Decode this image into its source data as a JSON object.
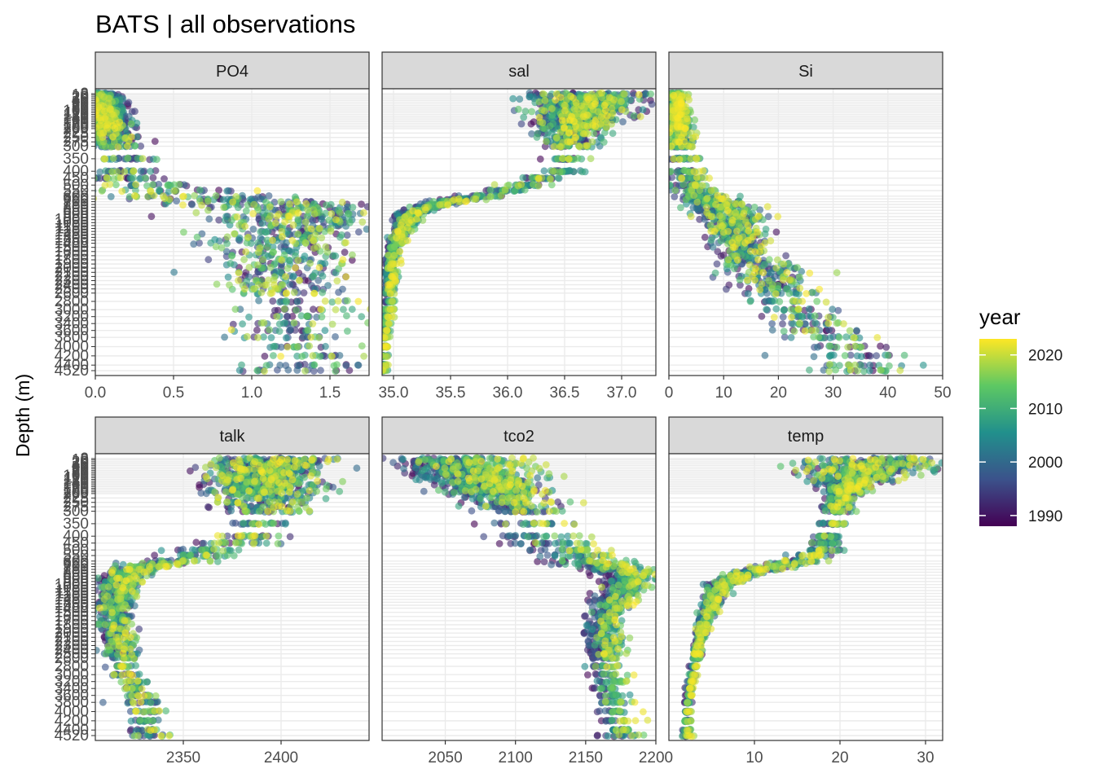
{
  "title": "BATS | all observations",
  "legend": {
    "title": "year",
    "ticks": [
      1990,
      2000,
      2010,
      2020
    ],
    "range": [
      1988,
      2023
    ],
    "colors": [
      "#440154",
      "#3b528b",
      "#21908c",
      "#5dc863",
      "#fde725"
    ]
  },
  "chart_data": {
    "type": "scatter",
    "ylabel": "Depth (m)",
    "y_scale": "reversed, discrete depth bins",
    "depth_levels": [
      2,
      10,
      20,
      30,
      40,
      50,
      60,
      70,
      80,
      90,
      100,
      110,
      120,
      130,
      140,
      150,
      160,
      170,
      180,
      190,
      200,
      225,
      250,
      275,
      300,
      350,
      400,
      450,
      500,
      550,
      600,
      650,
      700,
      750,
      800,
      850,
      900,
      950,
      1000,
      1050,
      1100,
      1150,
      1200,
      1250,
      1300,
      1350,
      1400,
      1500,
      1600,
      1700,
      1800,
      1900,
      2000,
      2100,
      2200,
      2300,
      2400,
      2500,
      2600,
      2800,
      3000,
      3200,
      3400,
      3600,
      3800,
      4000,
      4200,
      4400,
      4520
    ],
    "y_tick_labels": [
      "2",
      "10",
      "20",
      "30",
      "40",
      "50",
      "60",
      "70",
      "80",
      "90",
      "100",
      "110",
      "120",
      "130",
      "140",
      "150",
      "160",
      "170",
      "180",
      "190",
      "200",
      "225",
      "250",
      "275",
      "300",
      "350",
      "400",
      "450",
      "500",
      "550",
      "600",
      "650",
      "700",
      "750",
      "800",
      "850",
      "900",
      "950",
      "1000",
      "1050",
      "1100",
      "1150",
      "1200",
      "1250",
      "1300",
      "1350",
      "1400",
      "1500",
      "1600",
      "1700",
      "1800",
      "1900",
      "2000",
      "2100",
      "2200",
      "2300",
      "2400",
      "2500",
      "2600",
      "2800",
      "3000",
      "3200",
      "3400",
      "3600",
      "3800",
      "4000",
      "4200",
      "4400",
      "4520"
    ],
    "panels": [
      {
        "name": "PO4",
        "xlim": [
          0,
          1.75
        ],
        "xticks": [
          0,
          0.5,
          1,
          1.5
        ],
        "xtick_labels": [
          "0.0",
          "0.5",
          "1.0",
          "1.5"
        ],
        "profile": [
          [
            2,
            0.02
          ],
          [
            50,
            0.03
          ],
          [
            100,
            0.05
          ],
          [
            200,
            0.08
          ],
          [
            300,
            0.12
          ],
          [
            400,
            0.15
          ],
          [
            500,
            0.3
          ],
          [
            600,
            0.6
          ],
          [
            700,
            0.95
          ],
          [
            800,
            1.2
          ],
          [
            900,
            1.3
          ],
          [
            1000,
            1.3
          ],
          [
            1200,
            1.27
          ],
          [
            1400,
            1.22
          ],
          [
            1600,
            1.17
          ],
          [
            2000,
            1.18
          ],
          [
            2500,
            1.2
          ],
          [
            3000,
            1.22
          ],
          [
            3500,
            1.25
          ],
          [
            4000,
            1.3
          ],
          [
            4520,
            1.35
          ]
        ],
        "spread": [
          [
            2,
            0.05
          ],
          [
            200,
            0.07
          ],
          [
            400,
            0.15
          ],
          [
            600,
            0.3
          ],
          [
            800,
            0.3
          ],
          [
            1000,
            0.3
          ],
          [
            1500,
            0.22
          ],
          [
            2500,
            0.22
          ],
          [
            3500,
            0.22
          ],
          [
            4520,
            0.22
          ]
        ],
        "drift": -0.1
      },
      {
        "name": "sal",
        "xlim": [
          34.9,
          37.3
        ],
        "xticks": [
          35,
          35.5,
          36,
          36.5,
          37
        ],
        "xtick_labels": [
          "35.0",
          "35.5",
          "36.0",
          "36.5",
          "37.0"
        ],
        "profile": [
          [
            2,
            36.75
          ],
          [
            50,
            36.7
          ],
          [
            100,
            36.65
          ],
          [
            200,
            36.6
          ],
          [
            300,
            36.55
          ],
          [
            400,
            36.45
          ],
          [
            500,
            36.15
          ],
          [
            600,
            35.8
          ],
          [
            700,
            35.5
          ],
          [
            800,
            35.3
          ],
          [
            900,
            35.17
          ],
          [
            1000,
            35.12
          ],
          [
            1200,
            35.07
          ],
          [
            1400,
            35.03
          ],
          [
            1600,
            35.0
          ],
          [
            2000,
            34.98
          ],
          [
            2500,
            34.97
          ],
          [
            3000,
            34.95
          ],
          [
            4000,
            34.92
          ],
          [
            4520,
            34.91
          ]
        ],
        "spread": [
          [
            2,
            0.28
          ],
          [
            200,
            0.14
          ],
          [
            400,
            0.1
          ],
          [
            600,
            0.09
          ],
          [
            800,
            0.07
          ],
          [
            1000,
            0.05
          ],
          [
            1500,
            0.025
          ],
          [
            4520,
            0.015
          ]
        ],
        "drift": 0.1
      },
      {
        "name": "Si",
        "xlim": [
          0,
          50
        ],
        "xticks": [
          0,
          10,
          20,
          30,
          40,
          50
        ],
        "xtick_labels": [
          "0",
          "10",
          "20",
          "30",
          "40",
          "50"
        ],
        "profile": [
          [
            2,
            1
          ],
          [
            100,
            1.2
          ],
          [
            200,
            1.5
          ],
          [
            300,
            2.2
          ],
          [
            400,
            3
          ],
          [
            500,
            4
          ],
          [
            600,
            6
          ],
          [
            700,
            8
          ],
          [
            800,
            10
          ],
          [
            900,
            11
          ],
          [
            1000,
            12
          ],
          [
            1200,
            12.5
          ],
          [
            1400,
            13
          ],
          [
            1600,
            14
          ],
          [
            1800,
            15
          ],
          [
            2000,
            17
          ],
          [
            2200,
            18
          ],
          [
            2400,
            19
          ],
          [
            2600,
            21
          ],
          [
            2800,
            22
          ],
          [
            3000,
            23
          ],
          [
            3400,
            26
          ],
          [
            3800,
            30
          ],
          [
            4000,
            32
          ],
          [
            4200,
            34
          ],
          [
            4520,
            36
          ]
        ],
        "spread": [
          [
            2,
            0.8
          ],
          [
            400,
            1.5
          ],
          [
            800,
            3
          ],
          [
            1500,
            3
          ],
          [
            3000,
            4
          ],
          [
            4520,
            5
          ]
        ],
        "drift": 1.5
      },
      {
        "name": "talk",
        "xlim": [
          2305,
          2445
        ],
        "xticks": [
          2350,
          2400
        ],
        "xtick_labels": [
          "2350",
          "2400"
        ],
        "profile": [
          [
            2,
            2395
          ],
          [
            50,
            2395
          ],
          [
            100,
            2392
          ],
          [
            200,
            2392
          ],
          [
            300,
            2392
          ],
          [
            400,
            2385
          ],
          [
            500,
            2365
          ],
          [
            600,
            2345
          ],
          [
            700,
            2330
          ],
          [
            800,
            2322
          ],
          [
            900,
            2318
          ],
          [
            1000,
            2317
          ],
          [
            1200,
            2316
          ],
          [
            1400,
            2315
          ],
          [
            1600,
            2316
          ],
          [
            2000,
            2316
          ],
          [
            2400,
            2318
          ],
          [
            2800,
            2320
          ],
          [
            3000,
            2322
          ],
          [
            3400,
            2325
          ],
          [
            3800,
            2330
          ],
          [
            4200,
            2332
          ],
          [
            4520,
            2333
          ]
        ],
        "spread": [
          [
            2,
            15
          ],
          [
            300,
            12
          ],
          [
            400,
            10
          ],
          [
            600,
            8
          ],
          [
            800,
            6
          ],
          [
            1000,
            5
          ],
          [
            4520,
            4
          ]
        ],
        "drift": 6
      },
      {
        "name": "tco2",
        "xlim": [
          2005,
          2200
        ],
        "xticks": [
          2050,
          2100,
          2150,
          2200
        ],
        "xtick_labels": [
          "2050",
          "2100",
          "2150",
          "2200"
        ],
        "profile": [
          [
            2,
            2060
          ],
          [
            50,
            2065
          ],
          [
            100,
            2075
          ],
          [
            200,
            2090
          ],
          [
            300,
            2105
          ],
          [
            400,
            2125
          ],
          [
            500,
            2140
          ],
          [
            600,
            2155
          ],
          [
            700,
            2170
          ],
          [
            800,
            2180
          ],
          [
            900,
            2183
          ],
          [
            1000,
            2180
          ],
          [
            1200,
            2175
          ],
          [
            1400,
            2170
          ],
          [
            1600,
            2165
          ],
          [
            2000,
            2165
          ],
          [
            2600,
            2165
          ],
          [
            3000,
            2168
          ],
          [
            3800,
            2172
          ],
          [
            4520,
            2178
          ]
        ],
        "spread": [
          [
            2,
            20
          ],
          [
            300,
            15
          ],
          [
            400,
            13
          ],
          [
            600,
            12
          ],
          [
            800,
            9
          ],
          [
            1000,
            7
          ],
          [
            1500,
            6
          ],
          [
            4520,
            5
          ]
        ],
        "drift": 28
      },
      {
        "name": "temp",
        "xlim": [
          0,
          32
        ],
        "xticks": [
          10,
          20,
          30
        ],
        "xtick_labels": [
          "10",
          "20",
          "30"
        ],
        "profile": [
          [
            2,
            24
          ],
          [
            50,
            23.5
          ],
          [
            100,
            22
          ],
          [
            200,
            20.5
          ],
          [
            300,
            19.5
          ],
          [
            400,
            18.8
          ],
          [
            500,
            17.8
          ],
          [
            600,
            15.5
          ],
          [
            700,
            12.5
          ],
          [
            800,
            9.5
          ],
          [
            900,
            7.5
          ],
          [
            1000,
            6.2
          ],
          [
            1200,
            5.3
          ],
          [
            1400,
            4.8
          ],
          [
            1600,
            4.4
          ],
          [
            2000,
            3.8
          ],
          [
            2400,
            3.4
          ],
          [
            3000,
            2.8
          ],
          [
            3400,
            2.5
          ],
          [
            3800,
            2.3
          ],
          [
            4520,
            2.1
          ]
        ],
        "spread": [
          [
            2,
            4.5
          ],
          [
            200,
            0.8
          ],
          [
            400,
            0.8
          ],
          [
            600,
            1.2
          ],
          [
            800,
            1
          ],
          [
            1000,
            0.7
          ],
          [
            2000,
            0.3
          ],
          [
            4520,
            0.2
          ]
        ],
        "drift": 0.5
      }
    ]
  }
}
